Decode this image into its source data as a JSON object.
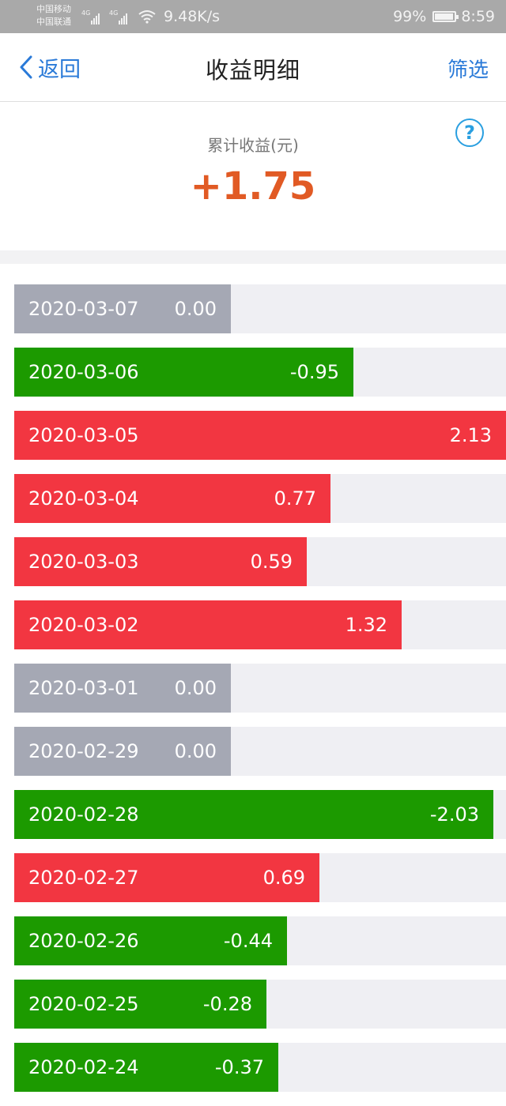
{
  "status_bar": {
    "carrier_1": "中国移动",
    "carrier_2": "中国联通",
    "net_1": "4G",
    "net_2": "4G",
    "speed": "9.48K/s",
    "battery": "99%",
    "time": "8:59"
  },
  "nav": {
    "back_label": "返回",
    "title": "收益明细",
    "filter_label": "筛选"
  },
  "summary": {
    "label": "累计收益(元)",
    "value": "+1.75",
    "help_glyph": "?"
  },
  "colors": {
    "positive": "#f23641",
    "negative": "#1c9a00",
    "zero": "#a5a8b4",
    "accent": "#2a7ad8",
    "total": "#e15a24"
  },
  "list": {
    "rows": [
      {
        "date": "2020-03-07",
        "value": "0.00",
        "bar_fraction": 0.44,
        "kind": "zero"
      },
      {
        "date": "2020-03-06",
        "value": "-0.95",
        "bar_fraction": 0.69,
        "kind": "neg"
      },
      {
        "date": "2020-03-05",
        "value": "2.13",
        "bar_fraction": 1.0,
        "kind": "pos"
      },
      {
        "date": "2020-03-04",
        "value": "0.77",
        "bar_fraction": 0.643,
        "kind": "pos"
      },
      {
        "date": "2020-03-03",
        "value": "0.59",
        "bar_fraction": 0.595,
        "kind": "pos"
      },
      {
        "date": "2020-03-02",
        "value": "1.32",
        "bar_fraction": 0.787,
        "kind": "pos"
      },
      {
        "date": "2020-03-01",
        "value": "0.00",
        "bar_fraction": 0.44,
        "kind": "zero"
      },
      {
        "date": "2020-02-29",
        "value": "0.00",
        "bar_fraction": 0.44,
        "kind": "zero"
      },
      {
        "date": "2020-02-28",
        "value": "-2.03",
        "bar_fraction": 0.974,
        "kind": "neg"
      },
      {
        "date": "2020-02-27",
        "value": "0.69",
        "bar_fraction": 0.621,
        "kind": "pos"
      },
      {
        "date": "2020-02-26",
        "value": "-0.44",
        "bar_fraction": 0.555,
        "kind": "neg"
      },
      {
        "date": "2020-02-25",
        "value": "-0.28",
        "bar_fraction": 0.513,
        "kind": "neg"
      },
      {
        "date": "2020-02-24",
        "value": "-0.37",
        "bar_fraction": 0.537,
        "kind": "neg"
      }
    ]
  }
}
